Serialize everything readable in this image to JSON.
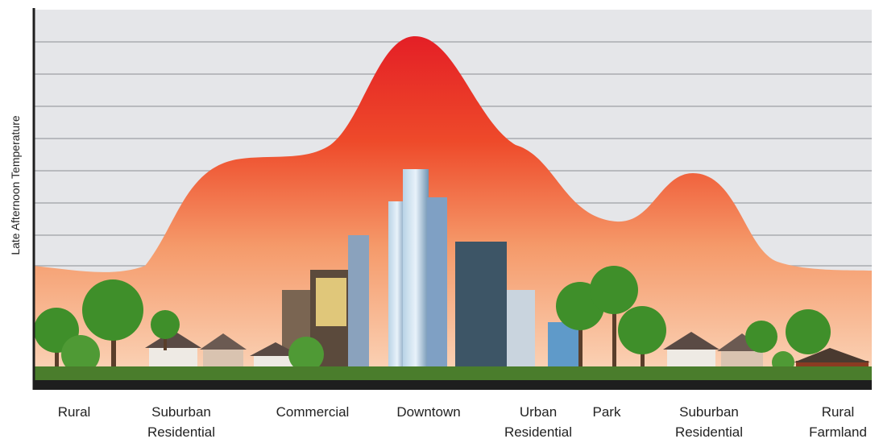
{
  "y_axis_label": "Late Afternoon Temperature",
  "zones": [
    {
      "lines": [
        "Rural"
      ]
    },
    {
      "lines": [
        "Suburban",
        "Residential"
      ]
    },
    {
      "lines": [
        "Commercial"
      ]
    },
    {
      "lines": [
        "Downtown"
      ]
    },
    {
      "lines": [
        "Urban",
        "Residential"
      ]
    },
    {
      "lines": [
        "Park"
      ]
    },
    {
      "lines": [
        "Suburban",
        "Residential"
      ]
    },
    {
      "lines": [
        "Rural",
        "Farmland"
      ]
    }
  ]
}
